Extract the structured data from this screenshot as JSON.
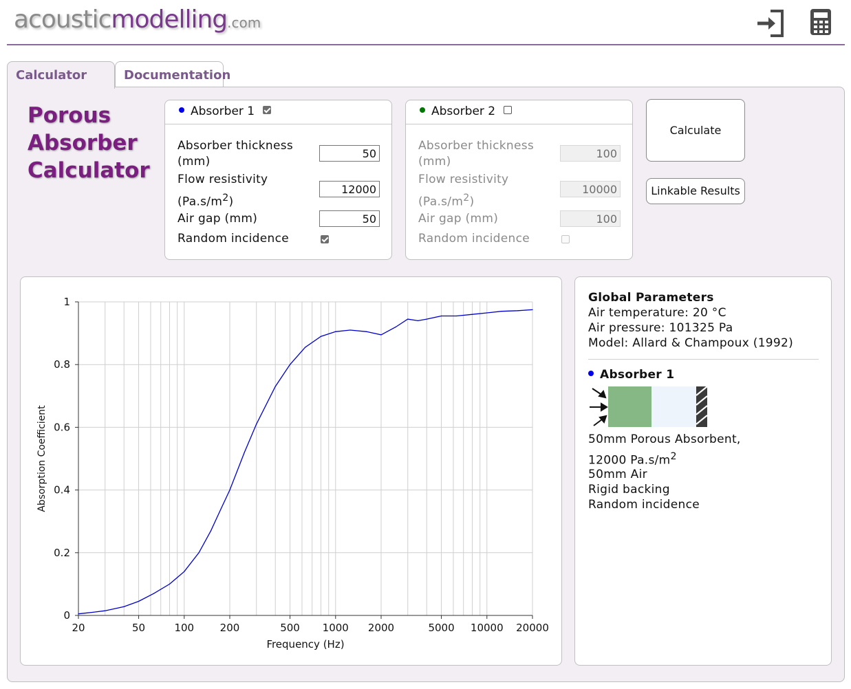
{
  "header": {
    "logo_main": "acoustic",
    "logo_accent": "modelling",
    "logo_suffix": ".com",
    "login_icon": "sign-in-icon",
    "calculator_icon": "calculator-icon"
  },
  "tabs": [
    {
      "label": "Calculator",
      "active": true
    },
    {
      "label": "Documentation",
      "active": false
    }
  ],
  "title": {
    "line1": "Porous",
    "line2": "Absorber",
    "line3": "Calculator"
  },
  "absorbers": [
    {
      "name": "Absorber 1",
      "color": "#0000ee",
      "enabled": true,
      "thickness_label": "Absorber thickness",
      "thickness_unit": "(mm)",
      "thickness": "50",
      "resistivity_label": "Flow resistivity",
      "resistivity_unit": "(Pa.s/m",
      "resistivity_sup": "2",
      "resistivity_close": ")",
      "resistivity": "12000",
      "airgap_label": "Air gap (mm)",
      "airgap": "50",
      "random_label": "Random incidence",
      "random": true
    },
    {
      "name": "Absorber 2",
      "color": "#007700",
      "enabled": false,
      "thickness_label": "Absorber thickness",
      "thickness_unit": "(mm)",
      "thickness": "100",
      "resistivity_label": "Flow resistivity",
      "resistivity_unit": "(Pa.s/m",
      "resistivity_sup": "2",
      "resistivity_close": ")",
      "resistivity": "10000",
      "airgap_label": "Air gap (mm)",
      "airgap": "100",
      "random_label": "Random incidence",
      "random": false
    }
  ],
  "buttons": {
    "calculate": "Calculate",
    "linkable": "Linkable Results"
  },
  "global": {
    "heading": "Global Parameters",
    "temp": "Air temperature: 20 °C",
    "pressure": "Air pressure: 101325 Pa",
    "model": "Model: Allard & Champoux (1992)"
  },
  "summary": {
    "heading": "Absorber 1",
    "line1": "50mm Porous Absorbent,",
    "line2": "12000 Pa.s/m",
    "line2_sup": "2",
    "line3": "50mm Air",
    "line4": "Rigid backing",
    "line5": "Random incidence",
    "absorber_color": "#86b886",
    "air_color": "#eef4fb"
  },
  "chart_data": {
    "type": "line",
    "xscale": "log",
    "xlim": [
      20,
      20000
    ],
    "ylim": [
      0,
      1
    ],
    "xlabel": "Frequency (Hz)",
    "ylabel": "Absorption Coefficient",
    "xticks": [
      20,
      50,
      100,
      200,
      500,
      1000,
      2000,
      5000,
      10000,
      20000
    ],
    "yticks": [
      "0",
      "0.2",
      "0.4",
      "0.6",
      "0.8",
      "1"
    ],
    "grid": true,
    "series": [
      {
        "color": "#0000cc",
        "x": [
          20,
          25,
          30,
          40,
          50,
          63,
          80,
          100,
          125,
          150,
          175,
          200,
          250,
          300,
          400,
          500,
          630,
          800,
          1000,
          1250,
          1600,
          2000,
          2500,
          3000,
          3500,
          4000,
          5000,
          6300,
          8000,
          10000,
          12500,
          16000,
          20000
        ],
        "y": [
          0.005,
          0.01,
          0.015,
          0.028,
          0.045,
          0.07,
          0.1,
          0.14,
          0.2,
          0.27,
          0.34,
          0.4,
          0.52,
          0.61,
          0.73,
          0.8,
          0.855,
          0.89,
          0.905,
          0.91,
          0.905,
          0.895,
          0.92,
          0.945,
          0.94,
          0.945,
          0.955,
          0.955,
          0.96,
          0.965,
          0.97,
          0.972,
          0.975
        ]
      }
    ]
  }
}
